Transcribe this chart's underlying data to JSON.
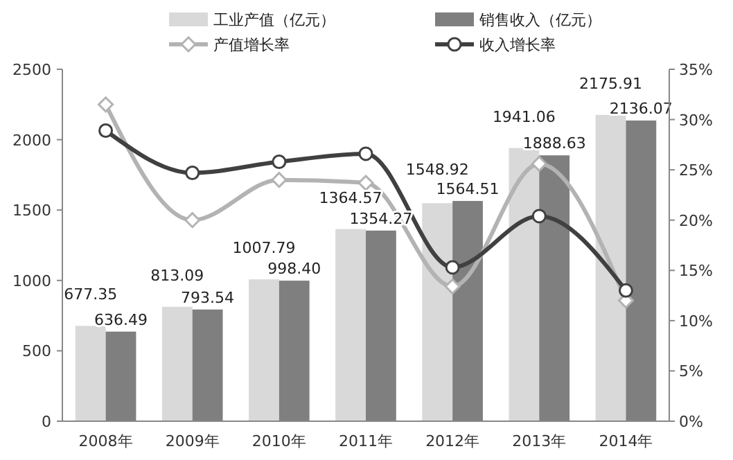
{
  "chart_data": {
    "type": "bar",
    "categories": [
      "2008年",
      "2009年",
      "2010年",
      "2011年",
      "2012年",
      "2013年",
      "2014年"
    ],
    "series": [
      {
        "name": "工业产值（亿元）",
        "color": "#d9d9d9",
        "values": [
          677.35,
          813.09,
          1007.79,
          1364.57,
          1548.92,
          1941.06,
          2175.91
        ],
        "value_labels": [
          "677.35",
          "813.09",
          "1007.79",
          "1364.57",
          "1548.92",
          "1941.06",
          "2175.91"
        ]
      },
      {
        "name": "销售收入（亿元）",
        "color": "#7f7f7f",
        "values": [
          636.49,
          793.54,
          998.4,
          1354.27,
          1564.51,
          1888.63,
          2136.07
        ],
        "value_labels": [
          "636.49",
          "793.54",
          "998.40",
          "1354.27",
          "1564.51",
          "1888.63",
          "2136.07"
        ]
      },
      {
        "name": "产值增长率",
        "type": "line",
        "axis": "y2",
        "color": "#b3b3b3",
        "marker": "diamond",
        "values": [
          31.5,
          20.0,
          24.0,
          23.7,
          13.4,
          25.6,
          12.0
        ]
      },
      {
        "name": "收入增长率",
        "type": "line",
        "axis": "y2",
        "color": "#404040",
        "marker": "circle",
        "values": [
          28.9,
          24.7,
          25.8,
          26.6,
          15.3,
          20.4,
          13.0
        ]
      }
    ],
    "ylim": [
      0,
      2500
    ],
    "yticks": [
      0,
      500,
      1000,
      1500,
      2000,
      2500
    ],
    "y2lim": [
      0,
      35
    ],
    "y2ticks": [
      {
        "value": 0,
        "label": "0%"
      },
      {
        "value": 5,
        "label": "5%"
      },
      {
        "value": 10,
        "label": "10%"
      },
      {
        "value": 15,
        "label": "15%"
      },
      {
        "value": 20,
        "label": "20%"
      },
      {
        "value": 25,
        "label": "25%"
      },
      {
        "value": 30,
        "label": "30%"
      },
      {
        "value": 35,
        "label": "35%"
      }
    ],
    "grid": false,
    "legend": "top"
  }
}
